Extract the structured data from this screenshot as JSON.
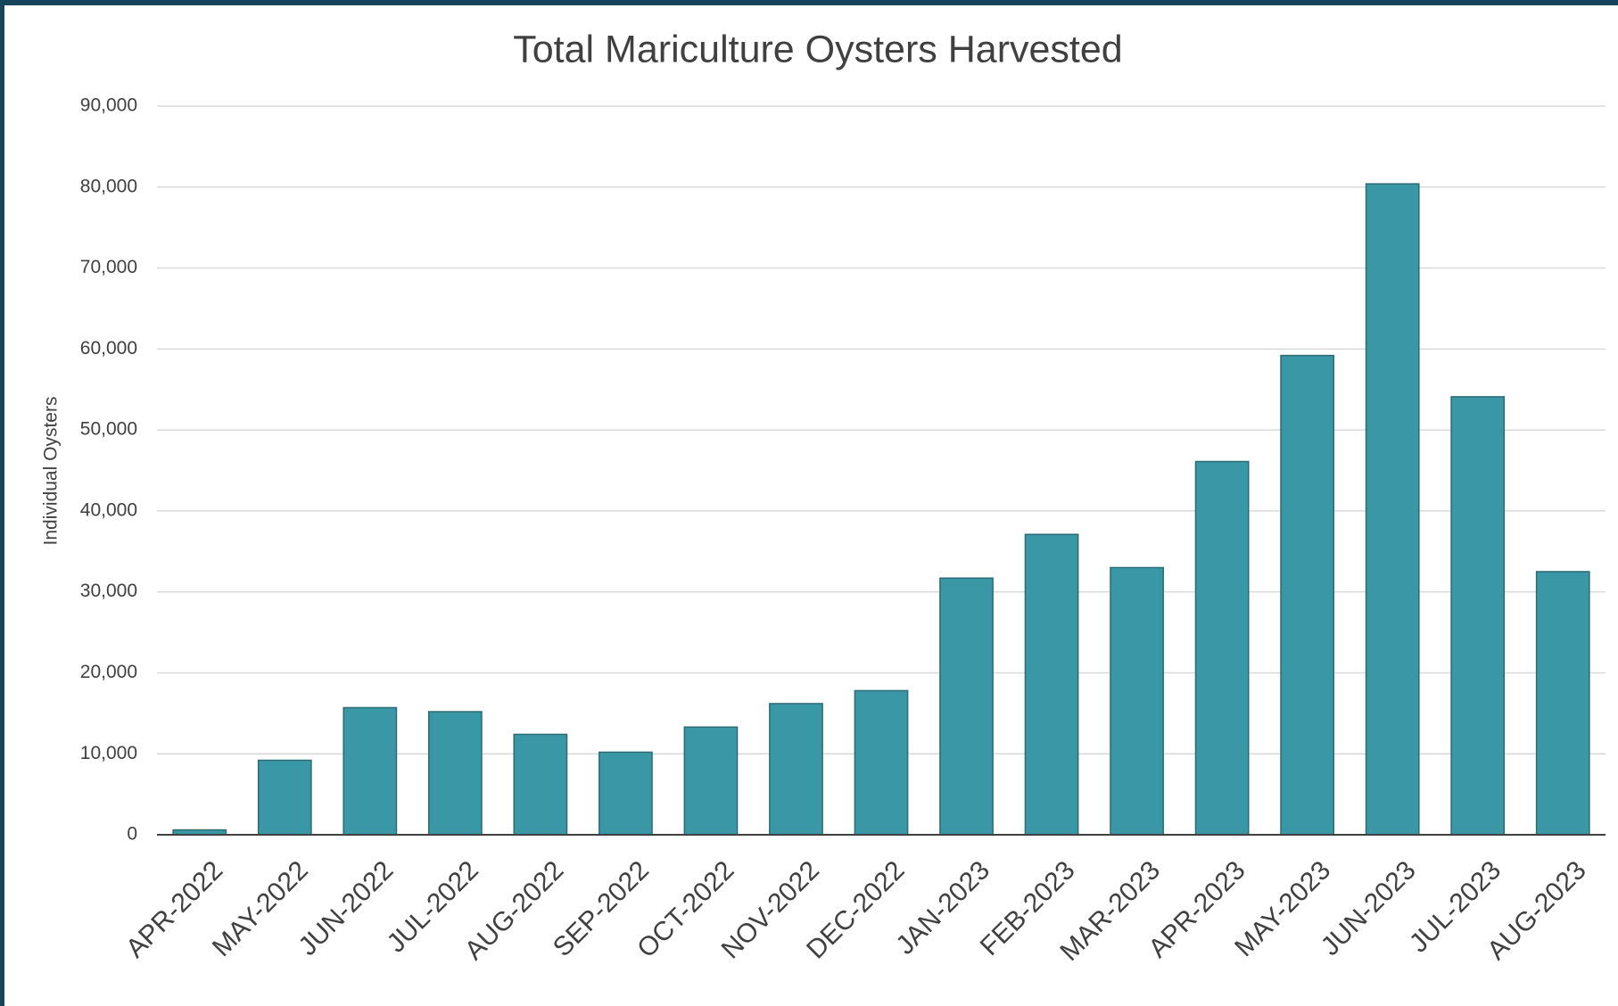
{
  "chart_data": {
    "type": "bar",
    "title": "Total Mariculture Oysters Harvested",
    "y_label": "Individual Oysters",
    "categories": [
      "APR-2022",
      "MAY-2022",
      "JUN-2022",
      "JUL-2022",
      "AUG-2022",
      "SEP-2022",
      "OCT-2022",
      "NOV-2022",
      "DEC-2022",
      "JAN-2023",
      "FEB-2023",
      "MAR-2023",
      "APR-2023",
      "MAY-2023",
      "JUN-2023",
      "JUL-2023",
      "AUG-2023"
    ],
    "values": [
      600,
      9200,
      15700,
      15200,
      12400,
      10200,
      13300,
      16200,
      17800,
      31700,
      37100,
      33000,
      46100,
      59200,
      80400,
      54100,
      32500
    ],
    "color": "#3a98a6",
    "ylim": [
      0,
      90000
    ],
    "yticks": [
      0,
      {
        "value": 10000,
        "label": "10,000"
      },
      {
        "value": 20000,
        "label": "20,000"
      },
      {
        "value": 30000,
        "label": "30,000"
      },
      {
        "value": 40000,
        "label": "40,000"
      },
      {
        "value": 50000,
        "label": "50,000"
      },
      {
        "value": 60000,
        "label": "60,000"
      },
      {
        "value": 70000,
        "label": "70,000"
      },
      {
        "value": 80000,
        "label": "80,000"
      },
      {
        "value": 90000,
        "label": "90,000"
      }
    ],
    "grid": true
  }
}
